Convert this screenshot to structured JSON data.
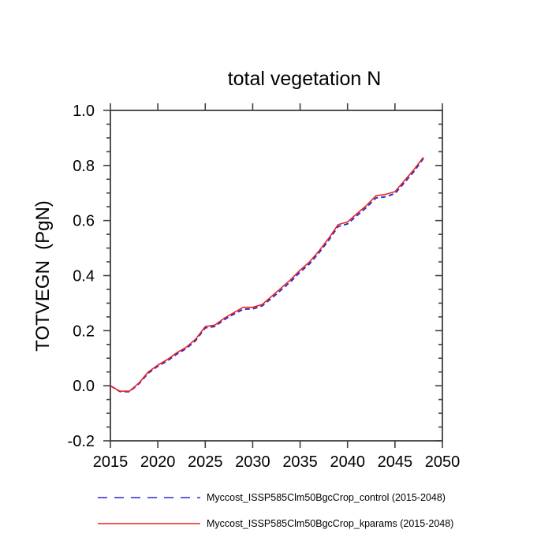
{
  "chart_data": {
    "type": "line",
    "title": "total vegetation N",
    "ylabel": "TOTVEGN  (PgN)",
    "xlabel": "",
    "xlim": [
      2015,
      2050
    ],
    "ylim": [
      -0.2,
      1.0
    ],
    "xticks": [
      2015,
      2020,
      2025,
      2030,
      2035,
      2040,
      2045,
      2050
    ],
    "yticks": [
      -0.2,
      0.0,
      0.2,
      0.4,
      0.6,
      0.8,
      1.0
    ],
    "y_minor_step": 0.05,
    "grid": false,
    "legend_position": "below-left",
    "axis_color": "#3f3f3f",
    "text_color": "#000000",
    "x": [
      2015,
      2016,
      2017,
      2018,
      2019,
      2020,
      2021,
      2022,
      2023,
      2024,
      2025,
      2026,
      2027,
      2028,
      2029,
      2030,
      2031,
      2032,
      2033,
      2034,
      2035,
      2036,
      2037,
      2038,
      2039,
      2040,
      2041,
      2042,
      2043,
      2044,
      2045,
      2046,
      2047,
      2048
    ],
    "series": [
      {
        "name": "Myccost_ISSP585Clm50BgcCrop_control (2015-2048)",
        "color": "#2a2ac8",
        "style": "dashed",
        "values": [
          0.0,
          -0.021,
          -0.022,
          0.007,
          0.046,
          0.071,
          0.09,
          0.115,
          0.135,
          0.165,
          0.21,
          0.215,
          0.24,
          0.26,
          0.278,
          0.279,
          0.29,
          0.318,
          0.348,
          0.378,
          0.413,
          0.443,
          0.483,
          0.528,
          0.578,
          0.588,
          0.618,
          0.648,
          0.682,
          0.686,
          0.698,
          0.738,
          0.778,
          0.825
        ]
      },
      {
        "name": "Myccost_ISSP585Clm50BgcCrop_kparams (2015-2048)",
        "color": "#ee2222",
        "style": "solid",
        "values": [
          0.0,
          -0.02,
          -0.02,
          0.01,
          0.05,
          0.075,
          0.095,
          0.12,
          0.14,
          0.17,
          0.215,
          0.22,
          0.245,
          0.265,
          0.285,
          0.285,
          0.295,
          0.325,
          0.355,
          0.385,
          0.42,
          0.45,
          0.49,
          0.535,
          0.585,
          0.595,
          0.625,
          0.655,
          0.69,
          0.695,
          0.705,
          0.745,
          0.785,
          0.83
        ]
      }
    ]
  }
}
